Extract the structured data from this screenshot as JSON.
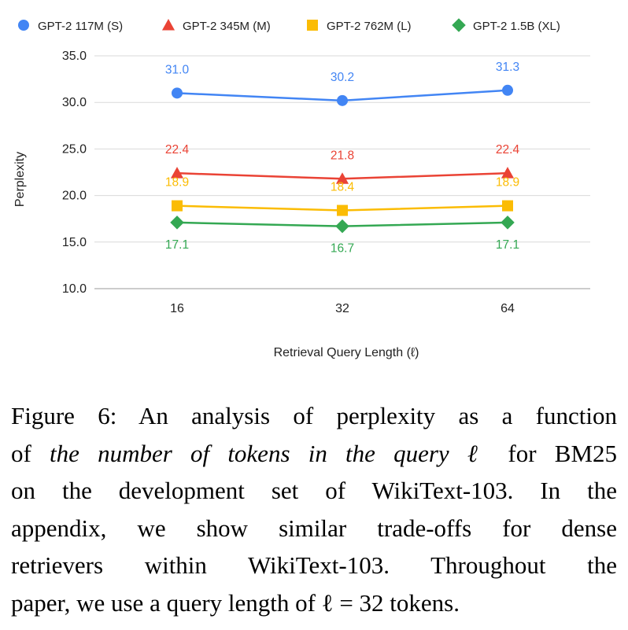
{
  "chart_data": {
    "type": "line",
    "categories": [
      "16",
      "32",
      "64"
    ],
    "xlabel": "Retrieval Query Length (ℓ)",
    "ylabel": "Perplexity",
    "ylim": [
      10.0,
      35.0
    ],
    "yticks": [
      "10.0",
      "15.0",
      "20.0",
      "25.0",
      "30.0",
      "35.0"
    ],
    "grid": true,
    "legend_position": "top",
    "series": [
      {
        "name": "GPT-2 117M (S)",
        "values": [
          31.0,
          30.2,
          31.3
        ],
        "labels": [
          "31.0",
          "30.2",
          "31.3"
        ],
        "color": "#4285F4",
        "marker": "circle"
      },
      {
        "name": "GPT-2 345M (M)",
        "values": [
          22.4,
          21.8,
          22.4
        ],
        "labels": [
          "22.4",
          "21.8",
          "22.4"
        ],
        "color": "#EA4335",
        "marker": "triangle"
      },
      {
        "name": "GPT-2 762M (L)",
        "values": [
          18.9,
          18.4,
          18.9
        ],
        "labels": [
          "18.9",
          "18.4",
          "18.9"
        ],
        "color": "#FBBC04",
        "marker": "square"
      },
      {
        "name": "GPT-2 1.5B (XL)",
        "values": [
          17.1,
          16.7,
          17.1
        ],
        "labels": [
          "17.1",
          "16.7",
          "17.1"
        ],
        "color": "#34A853",
        "marker": "diamond"
      }
    ]
  },
  "caption": {
    "line1": "Figure 6: An analysis of perplexity as a function",
    "line2_pre": "of ",
    "line2_italic": "the number of tokens in the query ℓ",
    "line2_post": " for BM25",
    "line3": "on the development set of WikiText-103. In the",
    "line4": "appendix, we show similar trade-offs for dense",
    "line5": "retrievers within WikiText-103. Throughout the",
    "line6": "paper, we use a query length of ℓ = 32 tokens."
  }
}
